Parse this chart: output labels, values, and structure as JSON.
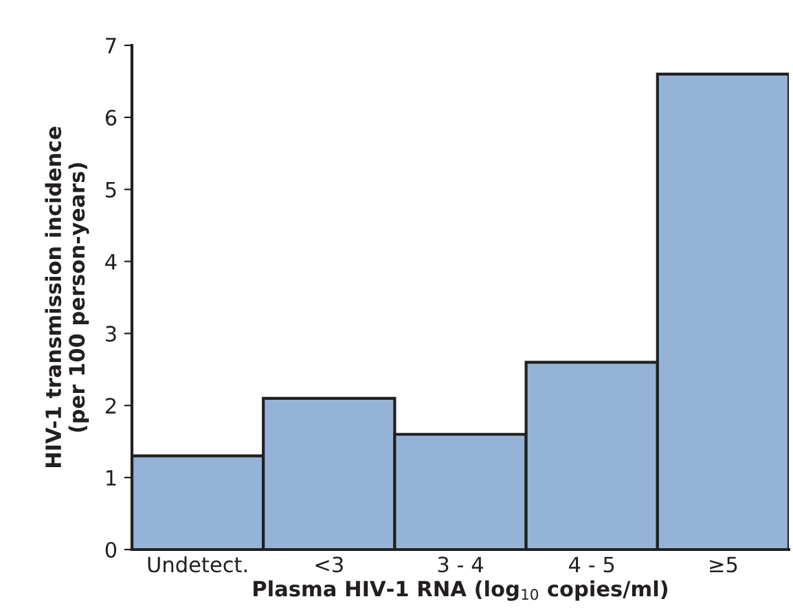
{
  "chart_data": {
    "type": "bar",
    "categories": [
      "Undetect.",
      "<3",
      "3 - 4",
      "4 - 5",
      "≥5"
    ],
    "values": [
      1.3,
      2.1,
      1.6,
      2.6,
      6.6
    ],
    "color": "#95b3d7",
    "xlabel": "Plasma HIV-1 RNA (log$_{10}$ copies/ml)",
    "ylabel": "HIV-1 transmission incidence\n(per 100 person-years)",
    "ylim": [
      0,
      7
    ],
    "yticks": [
      0,
      1,
      2,
      3,
      4,
      5,
      6,
      7
    ],
    "grid": false
  }
}
